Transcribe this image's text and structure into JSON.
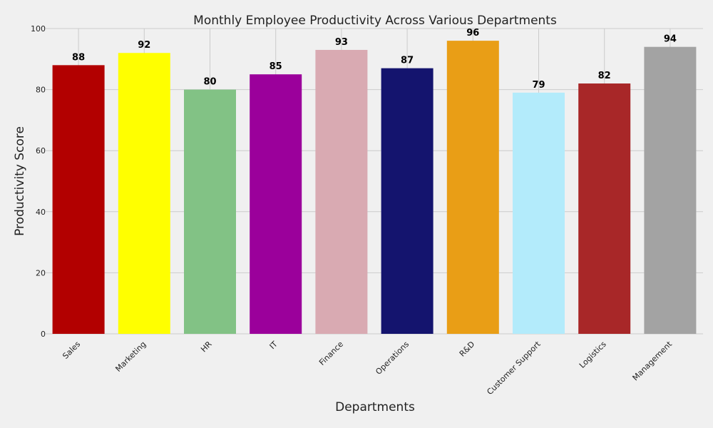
{
  "chart_data": {
    "type": "bar",
    "title": "Monthly Employee Productivity Across Various Departments",
    "xlabel": "Departments",
    "ylabel": "Productivity Score",
    "categories": [
      "Sales",
      "Marketing",
      "HR",
      "IT",
      "Finance",
      "Operations",
      "R&D",
      "Customer Support",
      "Logistics",
      "Management"
    ],
    "values": [
      88,
      92,
      80,
      85,
      93,
      87,
      96,
      79,
      82,
      94
    ],
    "colors": [
      "#b20000",
      "#ffff00",
      "#82c285",
      "#9b009b",
      "#d9aab2",
      "#14146e",
      "#e99e16",
      "#b3ebfb",
      "#a82728",
      "#a3a3a3"
    ],
    "ylim": [
      0,
      100
    ],
    "yticks": [
      0,
      20,
      40,
      60,
      80,
      100
    ],
    "grid": true,
    "background": "#f0f0f0",
    "grid_color": "#cbcbcb",
    "data_labels": true
  }
}
